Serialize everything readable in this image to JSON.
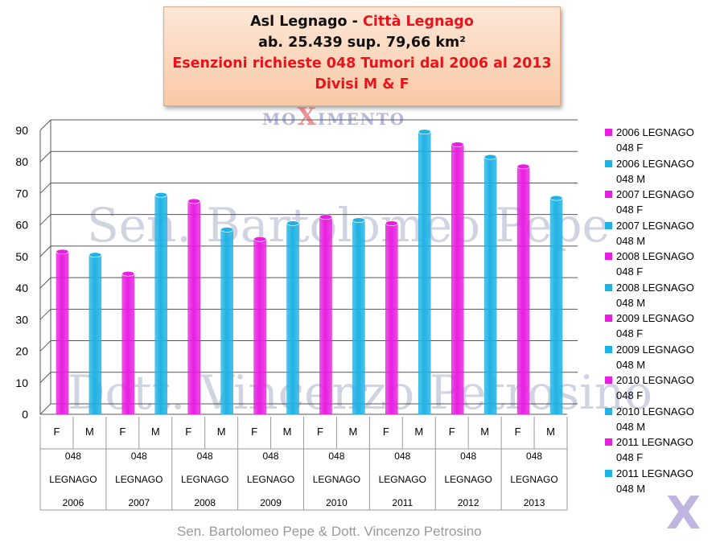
{
  "title": {
    "part1": "Asl Legnago - ",
    "part2": "Città Legnago",
    "line2": "ab. 25.439 sup. 79,66 km²",
    "line3": "Esenzioni richieste 048 Tumori dal 2006 al 2013",
    "line4": "Divisi M & F"
  },
  "watermarks": {
    "movimento_left": "MO",
    "movimento_x": "X",
    "movimento_right": "IMENTO",
    "name1": "Sen. Bartolomeo Pepe",
    "name2": "Dott. Vincenzo Petrosino",
    "logo": "X"
  },
  "footer": "Sen. Bartolomeo Pepe &  Dott. Vincenzo Petrosino",
  "colors": {
    "F": "#e81ee0",
    "M": "#1fb2e4"
  },
  "chart_data": {
    "type": "bar",
    "ylim": [
      0,
      90
    ],
    "yticks": [
      0,
      10,
      20,
      30,
      40,
      50,
      60,
      70,
      80,
      90
    ],
    "categories": [
      {
        "code": "048",
        "place": "LEGNAGO",
        "year": "2006"
      },
      {
        "code": "048",
        "place": "LEGNAGO",
        "year": "2007"
      },
      {
        "code": "048",
        "place": "LEGNAGO",
        "year": "2008"
      },
      {
        "code": "048",
        "place": "LEGNAGO",
        "year": "2009"
      },
      {
        "code": "048",
        "place": "LEGNAGO",
        "year": "2010"
      },
      {
        "code": "048",
        "place": "LEGNAGO",
        "year": "2011"
      },
      {
        "code": "048",
        "place": "LEGNAGO",
        "year": "2012"
      },
      {
        "code": "048",
        "place": "LEGNAGO",
        "year": "2013"
      }
    ],
    "sub_labels": [
      "F",
      "M"
    ],
    "series": [
      {
        "sex": "F",
        "values": [
          50,
          43,
          66,
          54,
          61,
          59,
          84,
          77
        ]
      },
      {
        "sex": "M",
        "values": [
          49,
          68,
          57,
          59,
          60,
          88,
          80,
          67
        ]
      }
    ],
    "legend": [
      {
        "line1": "2006 LEGNAGO",
        "line2": "048 F",
        "sex": "F"
      },
      {
        "line1": "2006 LEGNAGO",
        "line2": "048 M",
        "sex": "M"
      },
      {
        "line1": "2007 LEGNAGO",
        "line2": "048 F",
        "sex": "F"
      },
      {
        "line1": "2007 LEGNAGO",
        "line2": "048 M",
        "sex": "M"
      },
      {
        "line1": "2008 LEGNAGO",
        "line2": "048 F",
        "sex": "F"
      },
      {
        "line1": "2008 LEGNAGO",
        "line2": "048 M",
        "sex": "M"
      },
      {
        "line1": "2009 LEGNAGO",
        "line2": "048 F",
        "sex": "F"
      },
      {
        "line1": "2009 LEGNAGO",
        "line2": "048 M",
        "sex": "M"
      },
      {
        "line1": "2010 LEGNAGO",
        "line2": "048 F",
        "sex": "F"
      },
      {
        "line1": "2010 LEGNAGO",
        "line2": "048 M",
        "sex": "M"
      },
      {
        "line1": "2011 LEGNAGO",
        "line2": "048 F",
        "sex": "F"
      },
      {
        "line1": "2011 LEGNAGO",
        "line2": "048 M",
        "sex": "M"
      }
    ],
    "legend_placement": "right",
    "grid": true
  }
}
